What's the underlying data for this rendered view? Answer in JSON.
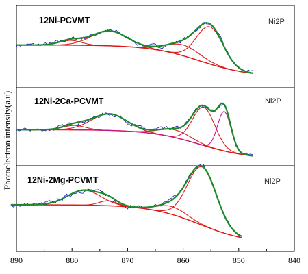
{
  "chart_data": {
    "type": "line",
    "ylabel": "Photoelectron intensity(a.u)",
    "xlabel": "",
    "xlim": [
      890,
      840
    ],
    "x_reversed": true,
    "x_ticks": [
      890,
      880,
      870,
      860,
      850,
      840
    ],
    "y_ticks": [],
    "grid": false,
    "legend": "none",
    "colors": {
      "raw": "#1010c0",
      "envelope": "#1a8a2a",
      "component": "#e01818",
      "background": "#e01818",
      "minor_component": "#c0189a"
    },
    "panels": [
      {
        "title": "12Ni-PCVMT",
        "tag": "Ni2P",
        "x_start": 890,
        "x_end": 847.5,
        "y_start": 0.55,
        "y_end": 0.08,
        "peaks": [
          {
            "center": 880.3,
            "height": 0.07,
            "width": 2.0
          },
          {
            "center": 873.3,
            "height": 0.22,
            "width": 3.2
          },
          {
            "center": 860.0,
            "height": 0.16,
            "width": 3.0
          },
          {
            "center": 855.2,
            "height": 0.55,
            "width": 2.4
          }
        ]
      },
      {
        "title": "12Ni-2Ca-PCVMT",
        "tag": "Ni2P",
        "x_start": 890,
        "x_end": 847.5,
        "y_start": 0.48,
        "y_end": 0.02,
        "peaks": [
          {
            "center": 879.6,
            "height": 0.07,
            "width": 2.0
          },
          {
            "center": 873.3,
            "height": 0.26,
            "width": 3.2
          },
          {
            "center": 861.5,
            "height": 0.12,
            "width": 2.8
          },
          {
            "center": 856.3,
            "height": 0.6,
            "width": 2.0
          },
          {
            "center": 852.6,
            "height": 0.62,
            "width": 1.2
          }
        ]
      },
      {
        "title": "12Ni-2Mg-PCVMT",
        "tag": "Ni2P",
        "x_start": 891,
        "x_end": 849.5,
        "y_start": 0.58,
        "y_end": 0.03,
        "peaks": [
          {
            "center": 877.8,
            "height": 0.21,
            "width": 3.0
          },
          {
            "center": 873.5,
            "height": 0.07,
            "width": 1.6
          },
          {
            "center": 862.0,
            "height": 0.11,
            "width": 2.6
          },
          {
            "center": 856.6,
            "height": 0.82,
            "width": 2.6
          }
        ]
      }
    ]
  }
}
